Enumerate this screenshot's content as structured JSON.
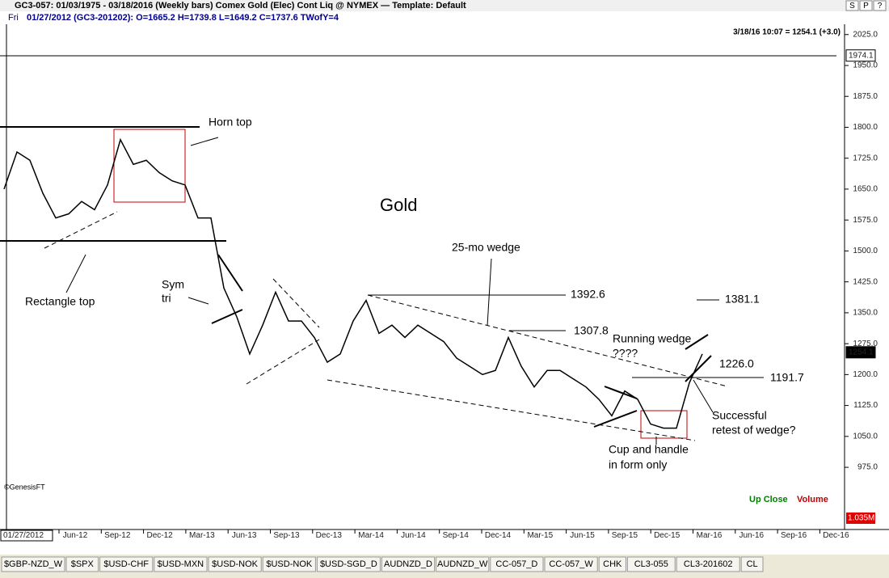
{
  "window": {
    "title": "GC3-057:  01/03/1975 - 03/18/2016  (Weekly bars)   Comex Gold (Elec) Cont Liq @ NYMEX  —  Template: Default",
    "buttons": [
      "S",
      "P",
      "?"
    ],
    "day": "Fri",
    "info": "01/27/2012 (GC3-201202):  O=1665.2  H=1739.8  L=1649.2  C=1737.6  TWofY=4"
  },
  "chart_data": {
    "type": "line",
    "title": "Gold",
    "last_quote": "3/18/16 10:07 = 1254.1 (+3.0)",
    "credit": "©GenesisFT",
    "legend": [
      "Up Close",
      "Volume"
    ],
    "volume_scale": "1.035M",
    "color": "#000000",
    "start_date": "01/27/2012",
    "x_labels": [
      "Jun-12",
      "Sep-12",
      "Dec-12",
      "Mar-13",
      "Jun-13",
      "Sep-13",
      "Dec-13",
      "Mar-14",
      "Jun-14",
      "Sep-14",
      "Dec-14",
      "Mar-15",
      "Jun-15",
      "Sep-15",
      "Dec-15",
      "Mar-16",
      "Jun-16",
      "Sep-16",
      "Dec-16"
    ],
    "values": [
      1650,
      1740,
      1720,
      1640,
      1580,
      1590,
      1620,
      1600,
      1660,
      1770,
      1710,
      1720,
      1690,
      1670,
      1660,
      1580,
      1580,
      1410,
      1340,
      1250,
      1320,
      1400,
      1330,
      1330,
      1290,
      1230,
      1250,
      1330,
      1380,
      1300,
      1320,
      1290,
      1320,
      1300,
      1280,
      1240,
      1220,
      1200,
      1210,
      1290,
      1220,
      1170,
      1210,
      1210,
      1190,
      1170,
      1140,
      1100,
      1160,
      1140,
      1080,
      1070,
      1070,
      1180,
      1250
    ],
    "ylim": [
      932,
      2050
    ],
    "yticks": [
      {
        "value": 975,
        "label": "975.0"
      },
      {
        "value": 1050,
        "label": "1050.0"
      },
      {
        "value": 1125,
        "label": "1125.0"
      },
      {
        "value": 1200,
        "label": "1200.0"
      },
      {
        "value": 1275,
        "label": "1275.0"
      },
      {
        "value": 1350,
        "label": "1350.0"
      },
      {
        "value": 1425,
        "label": "1425.0"
      },
      {
        "value": 1500,
        "label": "1500.0"
      },
      {
        "value": 1575,
        "label": "1575.0"
      },
      {
        "value": 1650,
        "label": "1650.0"
      },
      {
        "value": 1725,
        "label": "1725.0"
      },
      {
        "value": 1800,
        "label": "1800.0"
      },
      {
        "value": 1875,
        "label": "1875.0"
      },
      {
        "value": 1950,
        "label": "1950.0"
      },
      {
        "value": 2025,
        "label": "2025.0"
      }
    ],
    "markers": [
      {
        "value": 1974.1,
        "label": "1974.1"
      },
      {
        "value": 1254.1,
        "label": "1254.1"
      }
    ],
    "annotations": [
      "Horn top",
      "Rectangle top",
      "Sym",
      "tri",
      "25-mo wedge",
      "1392.6",
      "1307.8",
      "Running wedge",
      "????",
      "1226.0",
      "1191.7",
      "1381.1",
      "Successful",
      "retest of wedge?",
      "Cup and handle",
      "in form only"
    ]
  },
  "tabs": [
    "$GBP-NZD_W",
    "$SPX",
    "$USD-CHF",
    "$USD-MXN",
    "$USD-NOK",
    "$USD-NOK",
    "$USD-SGD_D",
    "AUDNZD_D",
    "AUDNZD_W",
    "CC-057_D",
    "CC-057_W",
    "CHK",
    "CL3-055",
    "CL3-201602",
    "CL"
  ]
}
